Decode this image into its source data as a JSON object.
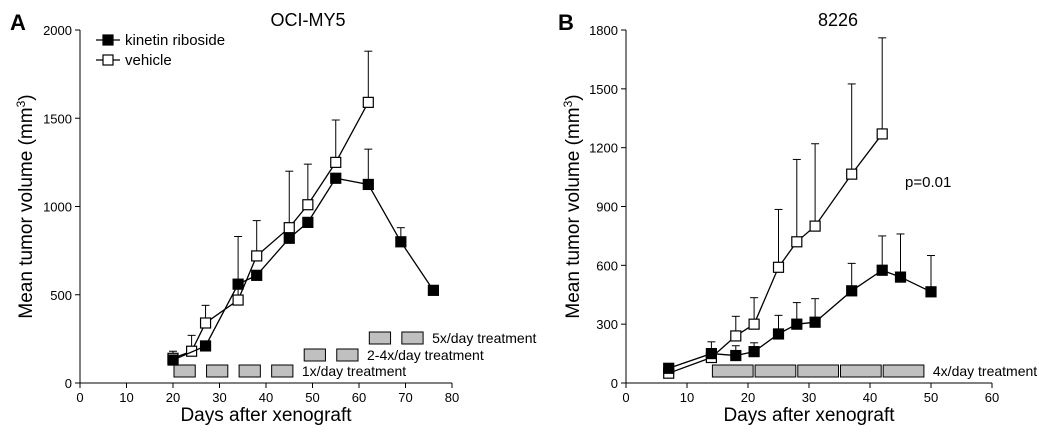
{
  "chart_data": [
    {
      "panel_letter": "A",
      "type": "line",
      "title": "OCI-MY5",
      "xlabel": "Days after xenograft",
      "ylabel": "Mean tumor volume (mm",
      "ylabel_superscript": "3",
      "ylabel_close": ")",
      "xlim": [
        0,
        80
      ],
      "ylim": [
        0,
        2000
      ],
      "xticks": [
        "0",
        "10",
        "20",
        "30",
        "40",
        "50",
        "60",
        "70",
        "80"
      ],
      "yticks": [
        "0",
        "500",
        "1000",
        "1500",
        "2000"
      ],
      "legend_position": "top-left",
      "series": [
        {
          "name": "kinetin riboside",
          "marker": "filled-square",
          "x": [
            20,
            27,
            34,
            38,
            45,
            49,
            55,
            62,
            69,
            76
          ],
          "y": [
            130,
            210,
            560,
            610,
            820,
            910,
            1160,
            1125,
            800,
            525
          ],
          "err": [
            0,
            0,
            0,
            0,
            0,
            0,
            0,
            200,
            80,
            0
          ]
        },
        {
          "name": "vehicle",
          "marker": "open-square",
          "x": [
            20,
            24,
            27,
            34,
            38,
            45,
            49,
            55,
            62
          ],
          "y": [
            140,
            180,
            340,
            470,
            720,
            880,
            1010,
            1250,
            1590
          ],
          "err": [
            40,
            90,
            100,
            360,
            200,
            320,
            230,
            240,
            290
          ]
        }
      ],
      "treatments": [
        {
          "label": "5x/day treatment",
          "bars": [
            [
              62,
              67
            ],
            [
              69,
              74
            ]
          ]
        },
        {
          "label": "2-4x/day treatment",
          "bars": [
            [
              48,
              53
            ],
            [
              55,
              60
            ]
          ]
        },
        {
          "label": "1x/day treatment",
          "bars": [
            [
              20,
              25
            ],
            [
              27,
              32
            ],
            [
              34,
              39
            ],
            [
              41,
              46
            ]
          ]
        }
      ]
    },
    {
      "panel_letter": "B",
      "type": "line",
      "title": "8226",
      "xlabel": "Days after xenograft",
      "ylabel": "Mean tumor volume (mm",
      "ylabel_superscript": "3",
      "ylabel_close": ")",
      "xlim": [
        0,
        60
      ],
      "ylim": [
        0,
        1800
      ],
      "xticks": [
        "0",
        "10",
        "20",
        "30",
        "40",
        "50",
        "60"
      ],
      "yticks": [
        "0",
        "300",
        "600",
        "900",
        "1200",
        "1500",
        "1800"
      ],
      "annotation": "p=0.01",
      "series": [
        {
          "name": "kinetin riboside",
          "marker": "filled-square",
          "x": [
            7,
            14,
            18,
            21,
            25,
            28,
            31,
            37,
            42,
            45,
            50
          ],
          "y": [
            75,
            150,
            140,
            160,
            250,
            300,
            310,
            470,
            575,
            540,
            465
          ],
          "err": [
            0,
            0,
            50,
            45,
            95,
            110,
            120,
            140,
            175,
            220,
            185
          ]
        },
        {
          "name": "vehicle",
          "marker": "open-square",
          "x": [
            7,
            14,
            18,
            21,
            25,
            28,
            31,
            37,
            42
          ],
          "y": [
            50,
            130,
            240,
            300,
            590,
            720,
            800,
            1065,
            1270
          ],
          "err": [
            0,
            80,
            100,
            135,
            295,
            420,
            420,
            460,
            490
          ]
        }
      ],
      "treatments": [
        {
          "label": "4x/day treatment",
          "bars": [
            [
              14,
              21
            ],
            [
              21,
              28
            ],
            [
              28,
              35
            ],
            [
              35,
              42
            ],
            [
              42,
              49
            ]
          ]
        }
      ]
    }
  ]
}
